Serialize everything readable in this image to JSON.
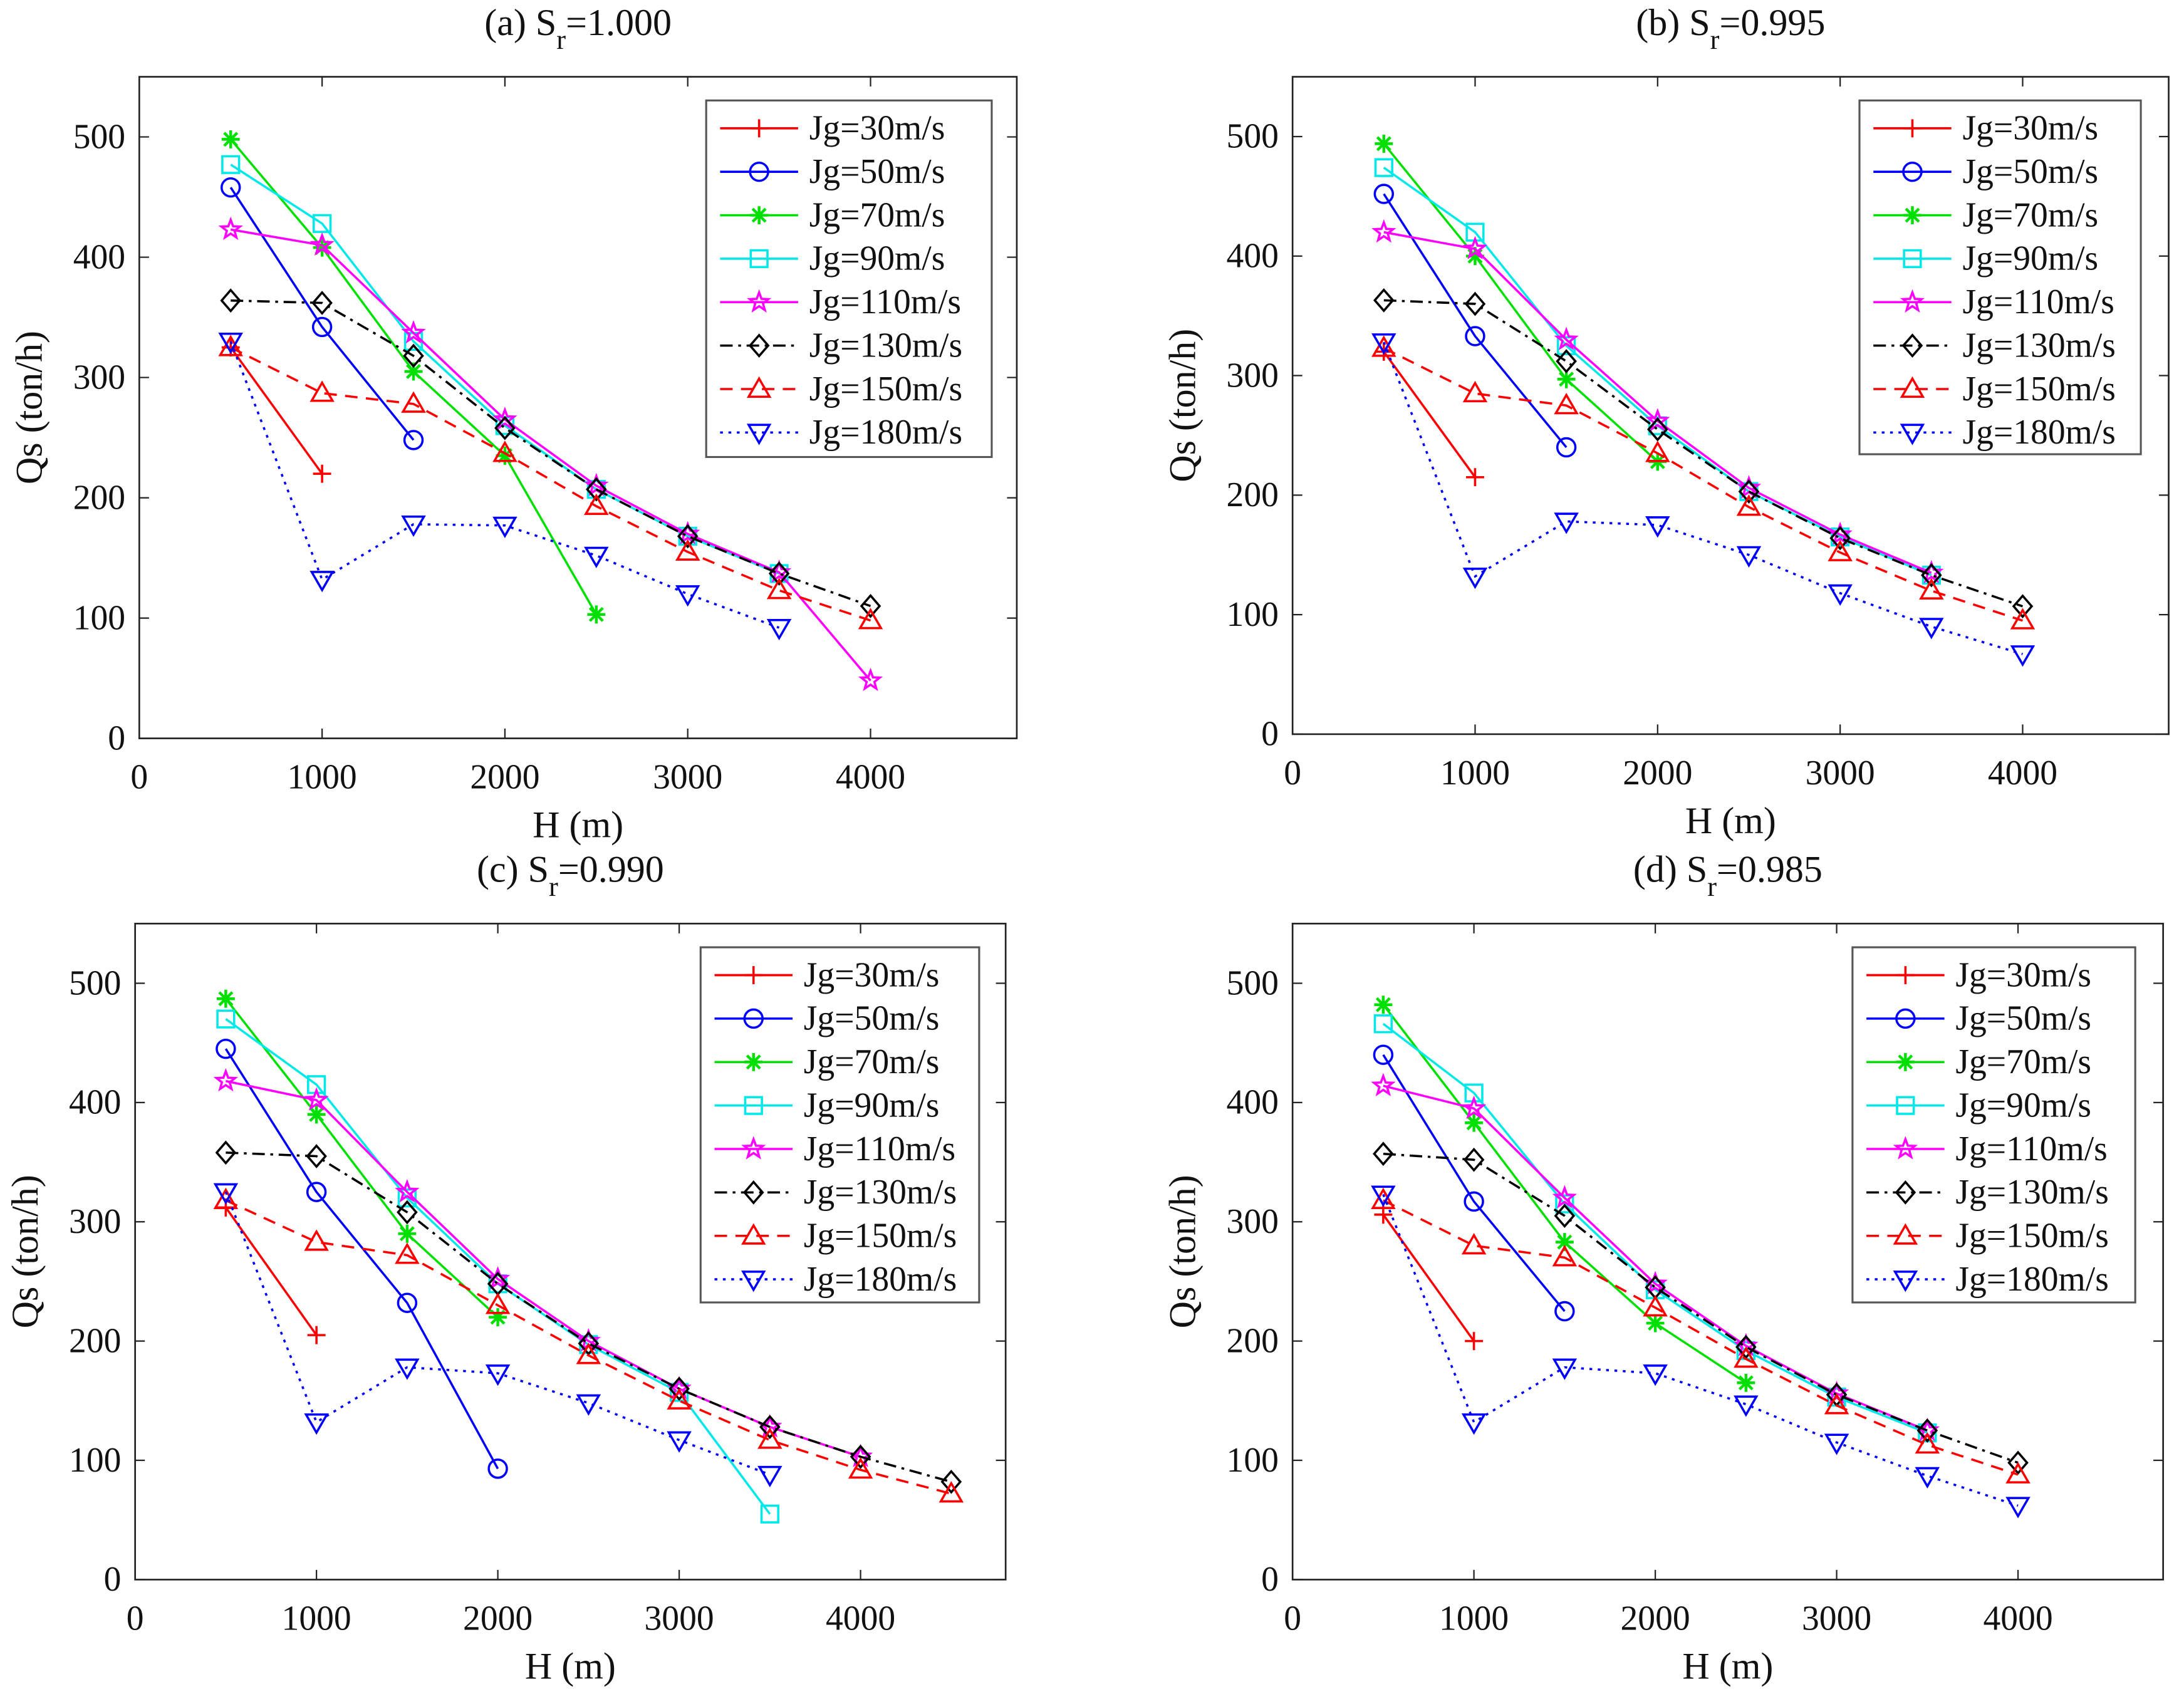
{
  "chart_data": {
    "type": "line",
    "shared": {
      "xlabel": "H (m)",
      "ylabel": "Qs (ton/h)",
      "xlim": [
        0,
        4800
      ],
      "ylim": [
        0,
        550
      ],
      "xticks": [
        0,
        1000,
        2000,
        3000,
        4000
      ],
      "yticks": [
        0,
        100,
        200,
        300,
        400,
        500
      ],
      "grid": false,
      "legend_placement": "top-right"
    },
    "series_styles": [
      {
        "name": "Jg=30m/s",
        "color": "#ff0000",
        "dash": "solid",
        "marker": "plus"
      },
      {
        "name": "Jg=50m/s",
        "color": "#0000ff",
        "dash": "solid",
        "marker": "circle"
      },
      {
        "name": "Jg=70m/s",
        "color": "#00e000",
        "dash": "solid",
        "marker": "asterisk"
      },
      {
        "name": "Jg=90m/s",
        "color": "#00e8e8",
        "dash": "solid",
        "marker": "square"
      },
      {
        "name": "Jg=110m/s",
        "color": "#ff00ff",
        "dash": "solid",
        "marker": "pentagram"
      },
      {
        "name": "Jg=130m/s",
        "color": "#000000",
        "dash": "dashdot",
        "marker": "diamond"
      },
      {
        "name": "Jg=150m/s",
        "color": "#ff0000",
        "dash": "dashed",
        "marker": "triangle-up"
      },
      {
        "name": "Jg=180m/s",
        "color": "#0000ff",
        "dash": "dotted",
        "marker": "triangle-down"
      }
    ],
    "panels": [
      {
        "title_prefix": "(a) S",
        "title_sub": "r",
        "title_value": "=1.000",
        "x": [
          500,
          1000,
          1500,
          2000,
          2500,
          3000,
          3500,
          4000,
          4500
        ],
        "series": [
          [
            325,
            220
          ],
          [
            458,
            342,
            248
          ],
          [
            498,
            408,
            305,
            235,
            103
          ],
          [
            477,
            428,
            330,
            260,
            207,
            168,
            137
          ],
          [
            423,
            410,
            337,
            265,
            210,
            170,
            138,
            48
          ],
          [
            364,
            362,
            318,
            258,
            207,
            168,
            137,
            110
          ],
          [
            325,
            287,
            278,
            237,
            193,
            155,
            123,
            98
          ],
          [
            330,
            132,
            178,
            177,
            152,
            120,
            92
          ]
        ]
      },
      {
        "title_prefix": "(b) S",
        "title_sub": "r",
        "title_value": "=0.995",
        "x": [
          500,
          1000,
          1500,
          2000,
          2500,
          3000,
          3500,
          4000,
          4500
        ],
        "series": [
          [
            320,
            215
          ],
          [
            452,
            333,
            240
          ],
          [
            494,
            400,
            297,
            228
          ],
          [
            474,
            420,
            325,
            258,
            203,
            165,
            133
          ],
          [
            420,
            406,
            330,
            262,
            206,
            167,
            135
          ],
          [
            363,
            360,
            312,
            255,
            203,
            164,
            133,
            107
          ],
          [
            323,
            285,
            275,
            235,
            190,
            152,
            120,
            95
          ],
          [
            328,
            132,
            178,
            175,
            150,
            118,
            90,
            67
          ]
        ]
      },
      {
        "title_prefix": "(c) S",
        "title_sub": "r",
        "title_value": "=0.990",
        "x": [
          500,
          1000,
          1500,
          2000,
          2500,
          3000,
          3500,
          4000,
          4500
        ],
        "series": [
          [
            312,
            205
          ],
          [
            445,
            325,
            232,
            93
          ],
          [
            487,
            390,
            290,
            220
          ],
          [
            470,
            415,
            320,
            248,
            197,
            157,
            55
          ],
          [
            418,
            402,
            325,
            252,
            200,
            160,
            128,
            103
          ],
          [
            358,
            355,
            308,
            248,
            198,
            160,
            128,
            103,
            82
          ],
          [
            318,
            283,
            272,
            230,
            188,
            150,
            117,
            92,
            72
          ],
          [
            325,
            132,
            178,
            173,
            148,
            117,
            88
          ]
        ]
      },
      {
        "title_prefix": "(d) S",
        "title_sub": "r",
        "title_value": "=0.985",
        "x": [
          500,
          1000,
          1500,
          2000,
          2500,
          3000,
          3500,
          4000,
          4500
        ],
        "series": [
          [
            306,
            200
          ],
          [
            440,
            317,
            225
          ],
          [
            482,
            383,
            283,
            215,
            165
          ],
          [
            466,
            408,
            315,
            243,
            192,
            153,
            123
          ],
          [
            414,
            395,
            320,
            248,
            196,
            156,
            125
          ],
          [
            357,
            352,
            305,
            245,
            195,
            155,
            125,
            98
          ],
          [
            318,
            280,
            270,
            228,
            185,
            146,
            113,
            88
          ],
          [
            323,
            132,
            178,
            173,
            147,
            115,
            87,
            62
          ]
        ]
      }
    ]
  }
}
